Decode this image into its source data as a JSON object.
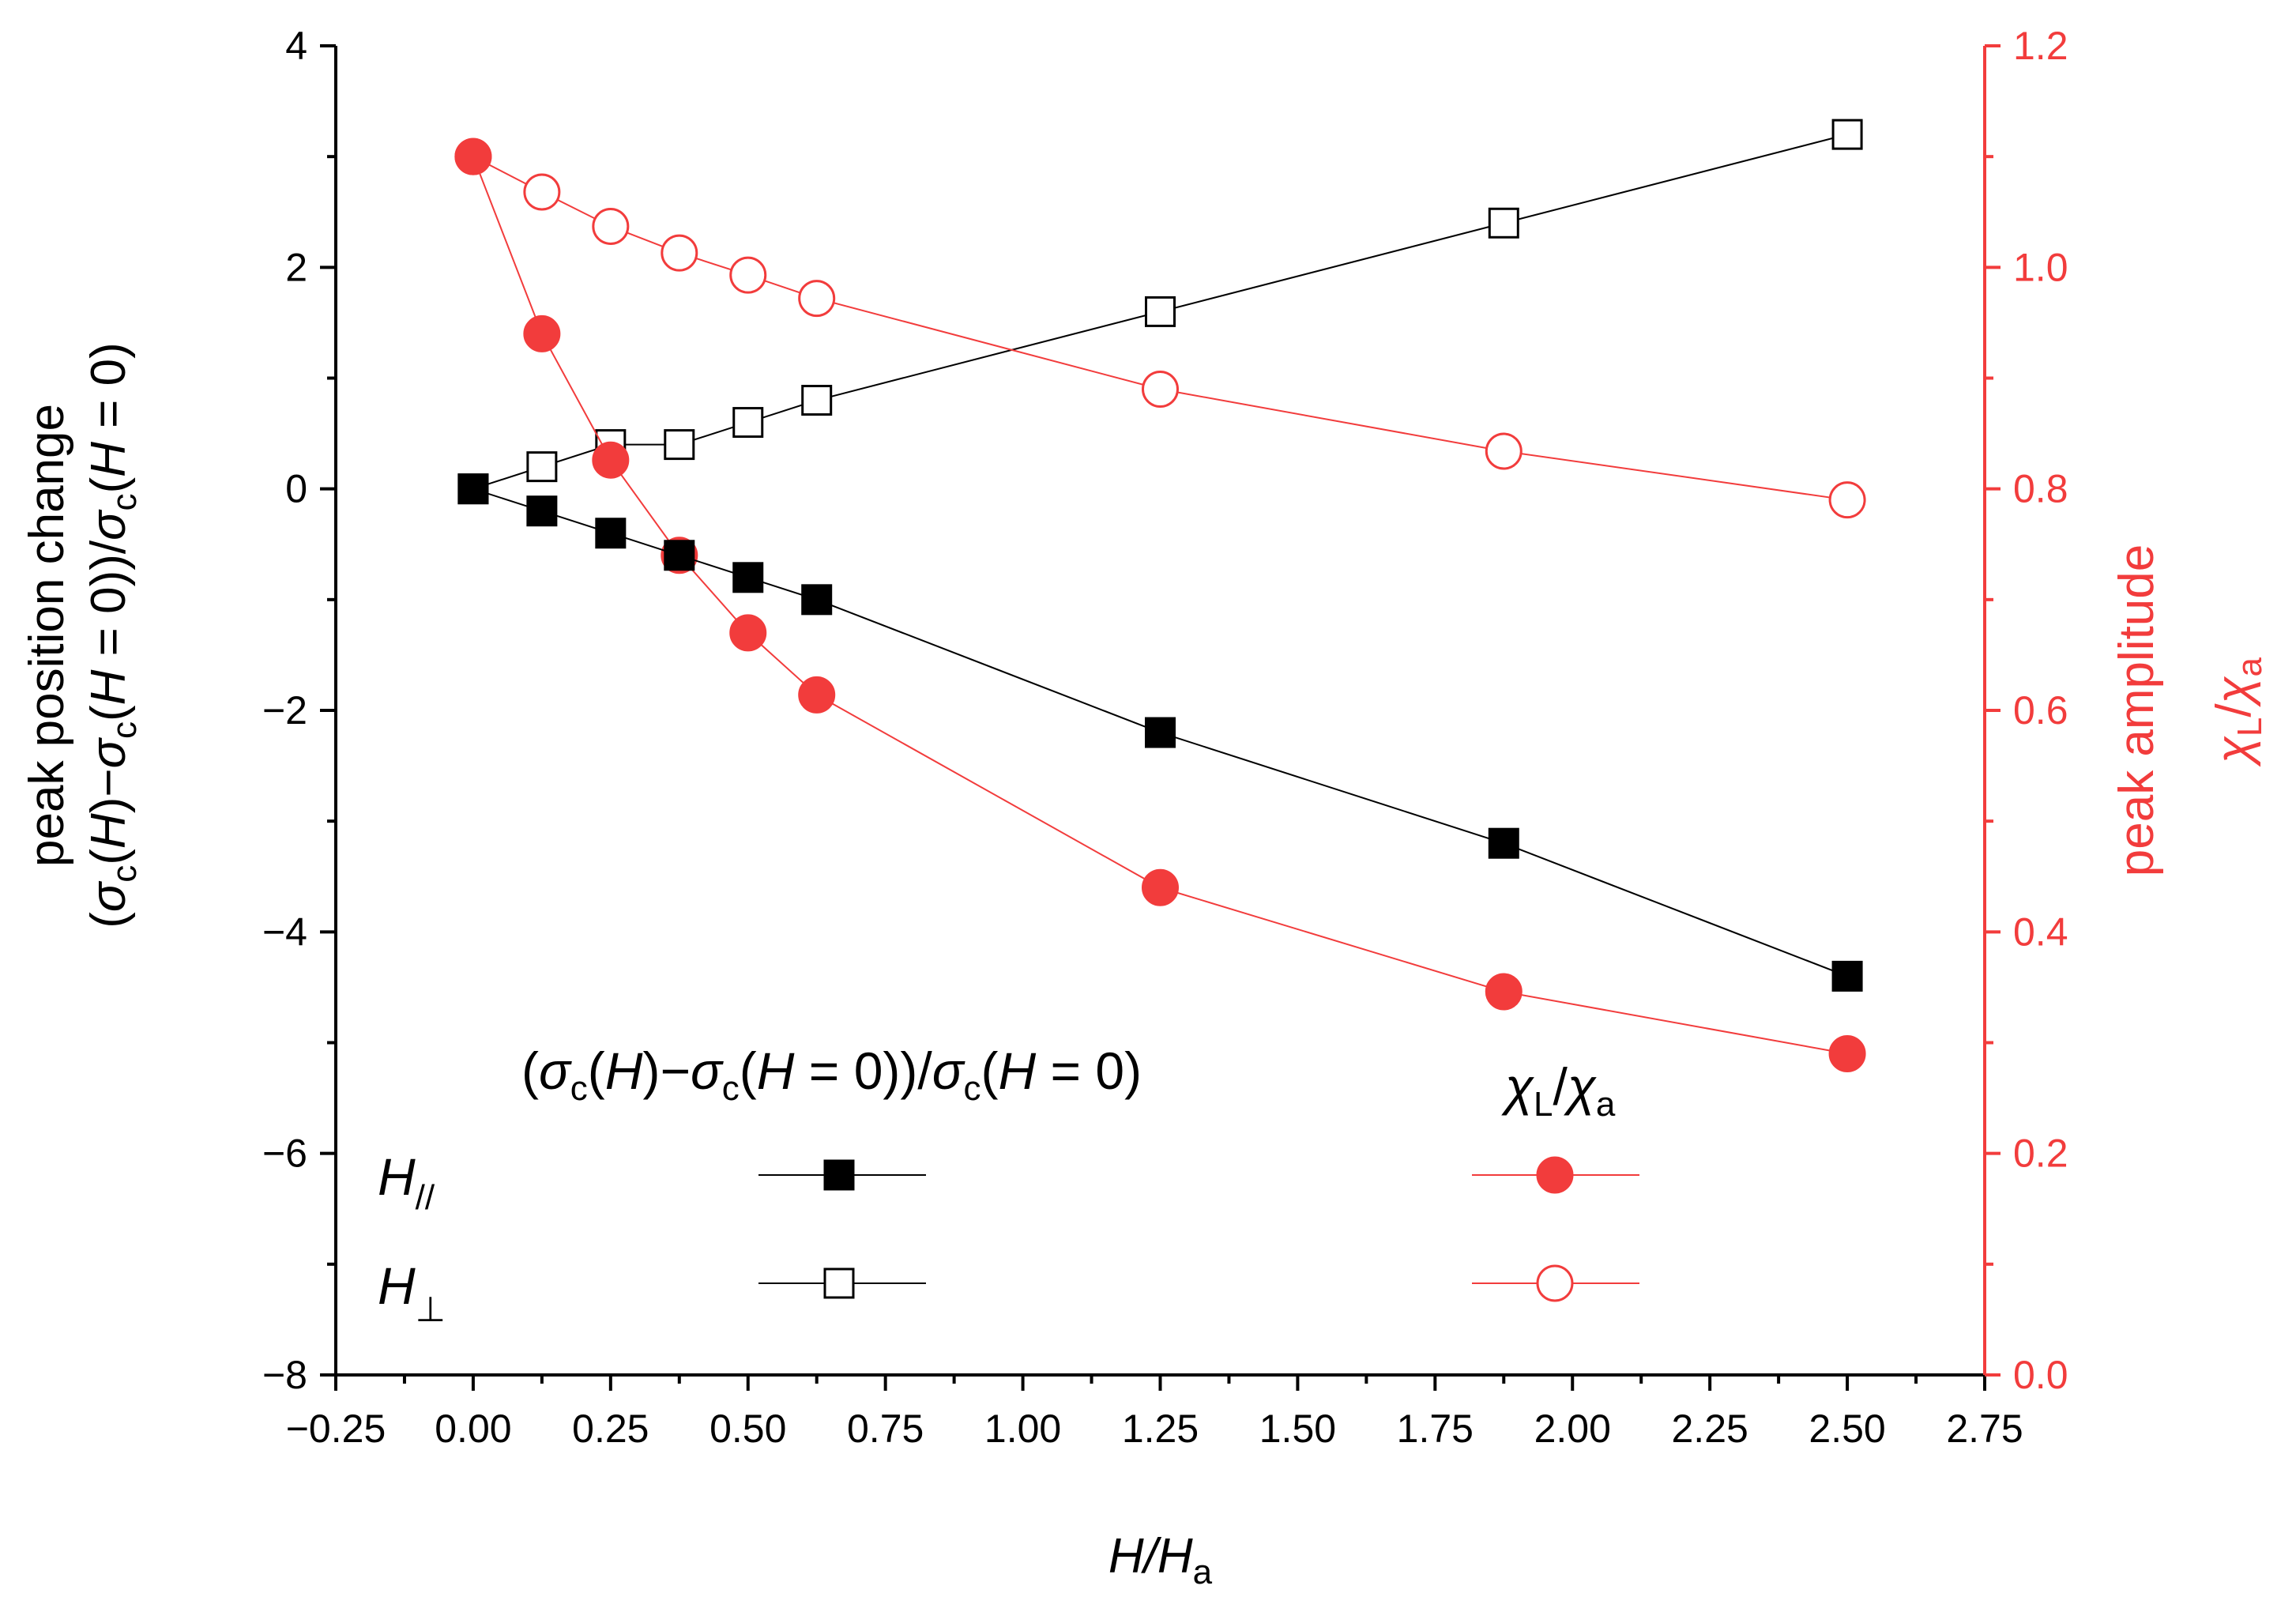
{
  "chart_data": {
    "type": "line",
    "x": [
      0.0,
      0.125,
      0.25,
      0.375,
      0.5,
      0.625,
      1.25,
      1.875,
      2.5
    ],
    "xlabel": {
      "main": "H",
      "sep": "/",
      "main2": "H",
      "sub2": "a"
    },
    "xlim": [
      -0.25,
      2.75
    ],
    "xticks": [
      "−0.25",
      "0.00",
      "0.25",
      "0.50",
      "0.75",
      "1.00",
      "1.25",
      "1.50",
      "1.75",
      "2.00",
      "2.25",
      "2.50",
      "2.75"
    ],
    "left_axis": {
      "label_line1": "peak position change",
      "label_line2": "(σc(H)−σc(H = 0))/σc(H = 0)",
      "ylim": [
        -8,
        4
      ],
      "ticks": [
        "4",
        "2",
        "0",
        "−2",
        "−4",
        "−6",
        "−8"
      ],
      "color": "#000000"
    },
    "right_axis": {
      "label_line1": "peak amplitude",
      "label_line2": "χL/χa",
      "ylim": [
        0.0,
        1.2
      ],
      "ticks": [
        "1.2",
        "1.0",
        "0.8",
        "0.6",
        "0.4",
        "0.2",
        "0.0"
      ],
      "color": "#f23c3c"
    },
    "series": [
      {
        "name": "H// peak position change",
        "axis": "left",
        "marker": "filled-square",
        "color": "#000000",
        "values": [
          0.0,
          -0.2,
          -0.4,
          -0.6,
          -0.8,
          -1.0,
          -2.2,
          -3.2,
          -4.4
        ]
      },
      {
        "name": "H⊥ peak position change",
        "axis": "left",
        "marker": "open-square",
        "color": "#000000",
        "values": [
          0.0,
          0.2,
          0.4,
          0.4,
          0.6,
          0.8,
          1.6,
          2.4,
          3.2
        ]
      },
      {
        "name": "H// peak amplitude",
        "axis": "right",
        "marker": "filled-circle",
        "color": "#f23c3c",
        "values": [
          1.1,
          0.94,
          0.826,
          0.74,
          0.67,
          0.614,
          0.44,
          0.346,
          0.29
        ]
      },
      {
        "name": "H⊥ peak amplitude",
        "axis": "right",
        "marker": "open-circle",
        "color": "#f23c3c",
        "values": [
          1.1,
          1.068,
          1.037,
          1.013,
          0.993,
          0.972,
          0.89,
          0.834,
          0.79
        ]
      }
    ],
    "legend": {
      "col1_header": "(σc(H)−σc(H = 0))/σc(H = 0)",
      "col2_header": "χL/χa",
      "row1": "H//",
      "row2": "H⊥",
      "placement": "bottom-left"
    }
  }
}
